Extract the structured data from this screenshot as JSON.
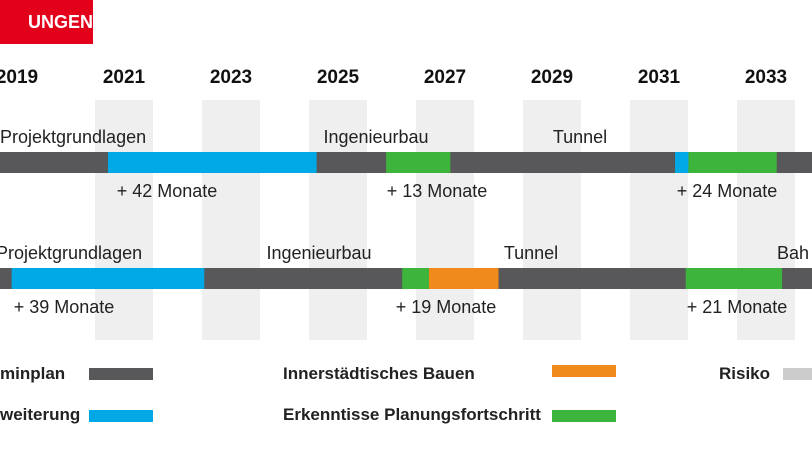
{
  "header": {
    "title": "UNGEN",
    "color": "#e2001a"
  },
  "chart_data": {
    "type": "gantt",
    "x_ticks": [
      "2019",
      "2021",
      "2023",
      "2025",
      "2027",
      "2029",
      "2031",
      "2033"
    ],
    "colors": {
      "terminplan": "#58585a",
      "erweiterung": "#00a9e6",
      "innerstaedtisch": "#f08a1a",
      "erkenntnisse": "#3db53d",
      "risiko": "#cccccc",
      "grid_stripe": "#efefef"
    },
    "rows": [
      {
        "phases": [
          "Projektgrundlagen",
          "Ingenieurbau",
          "Tunnel"
        ],
        "segments": [
          {
            "category": "erweiterung",
            "start_year": 2020.7,
            "end_year": 2024.6
          },
          {
            "category": "erkenntnisse",
            "start_year": 2025.9,
            "end_year": 2027.1
          },
          {
            "category": "erweiterung",
            "start_year": 2031.3,
            "end_year": 2031.55
          },
          {
            "category": "erkenntnisse",
            "start_year": 2031.55,
            "end_year": 2033.2
          }
        ],
        "delays": [
          "+ 42 Monate",
          "+ 13 Monate",
          "+ 24 Monate"
        ]
      },
      {
        "phases": [
          "Projektgrundlagen",
          "Ingenieurbau",
          "Tunnel",
          "Bah"
        ],
        "segments": [
          {
            "category": "erweiterung",
            "start_year": 2018.9,
            "end_year": 2022.5
          },
          {
            "category": "erkenntnisse",
            "start_year": 2026.2,
            "end_year": 2026.7
          },
          {
            "category": "innerstaedtisch",
            "start_year": 2026.7,
            "end_year": 2028.0
          },
          {
            "category": "erkenntnisse",
            "start_year": 2031.5,
            "end_year": 2033.3
          }
        ],
        "delays": [
          "+ 39 Monate",
          "+ 19 Monate",
          "+ 21 Monate"
        ]
      }
    ]
  },
  "legend": {
    "terminplan": "minplan",
    "erweiterung": "weiterung",
    "innerstaedtisch": "Innerstädtisches Bauen",
    "erkenntnisse": "Erkenntisse Planungsfortschritt",
    "risiko": "Risiko"
  }
}
